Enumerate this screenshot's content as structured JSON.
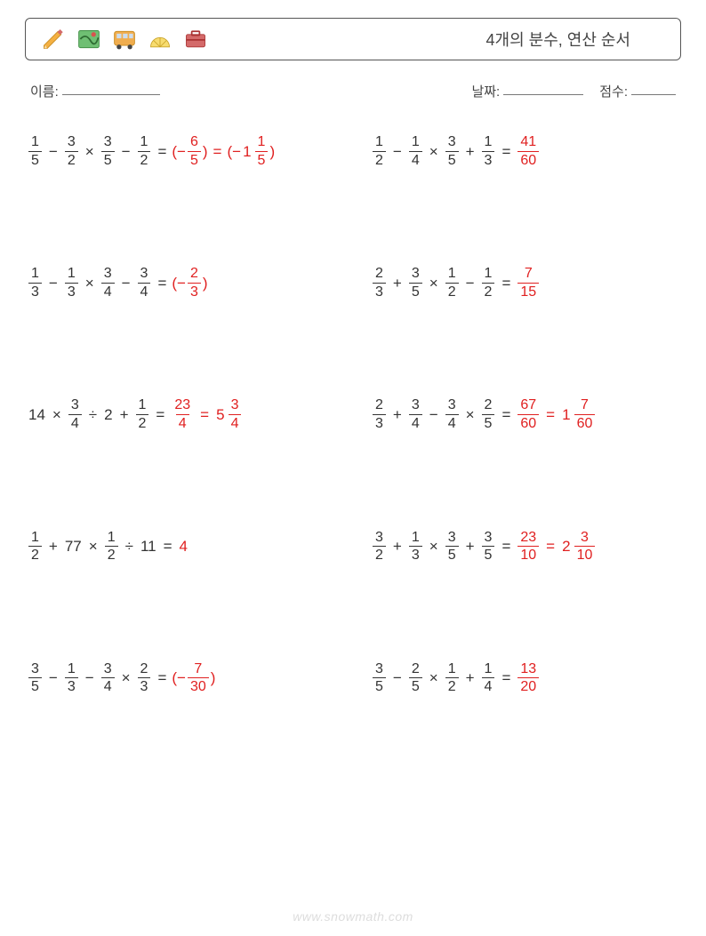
{
  "header": {
    "title": "4개의 분수, 연산 순서",
    "icons": [
      "pencil-icon",
      "map-icon",
      "bus-icon",
      "protractor-icon",
      "briefcase-icon"
    ]
  },
  "info": {
    "name_label": "이름:",
    "date_label": "날짜:",
    "score_label": "점수:"
  },
  "style": {
    "page_bg": "#ffffff",
    "text_color": "#333333",
    "answer_color": "#e02020",
    "border_color": "#555555",
    "watermark_color": "#dddddd",
    "font_size_body": 17,
    "font_size_title": 18
  },
  "problems": [
    {
      "expr": [
        {
          "t": "frac",
          "n": "1",
          "d": "5"
        },
        {
          "t": "op",
          "v": "−"
        },
        {
          "t": "frac",
          "n": "3",
          "d": "2"
        },
        {
          "t": "op",
          "v": "×"
        },
        {
          "t": "frac",
          "n": "3",
          "d": "5"
        },
        {
          "t": "op",
          "v": "−"
        },
        {
          "t": "frac",
          "n": "1",
          "d": "2"
        },
        {
          "t": "op",
          "v": "="
        }
      ],
      "ans": [
        {
          "t": "txt",
          "v": "(−"
        },
        {
          "t": "frac",
          "n": "6",
          "d": "5"
        },
        {
          "t": "txt",
          "v": ")"
        },
        {
          "t": "op",
          "v": "="
        },
        {
          "t": "txt",
          "v": "(−"
        },
        {
          "t": "mixed",
          "w": "1",
          "n": "1",
          "d": "5"
        },
        {
          "t": "txt",
          "v": ")"
        }
      ]
    },
    {
      "expr": [
        {
          "t": "frac",
          "n": "1",
          "d": "2"
        },
        {
          "t": "op",
          "v": "−"
        },
        {
          "t": "frac",
          "n": "1",
          "d": "4"
        },
        {
          "t": "op",
          "v": "×"
        },
        {
          "t": "frac",
          "n": "3",
          "d": "5"
        },
        {
          "t": "op",
          "v": "+"
        },
        {
          "t": "frac",
          "n": "1",
          "d": "3"
        },
        {
          "t": "op",
          "v": "="
        }
      ],
      "ans": [
        {
          "t": "frac",
          "n": "41",
          "d": "60"
        }
      ]
    },
    {
      "expr": [
        {
          "t": "frac",
          "n": "1",
          "d": "3"
        },
        {
          "t": "op",
          "v": "−"
        },
        {
          "t": "frac",
          "n": "1",
          "d": "3"
        },
        {
          "t": "op",
          "v": "×"
        },
        {
          "t": "frac",
          "n": "3",
          "d": "4"
        },
        {
          "t": "op",
          "v": "−"
        },
        {
          "t": "frac",
          "n": "3",
          "d": "4"
        },
        {
          "t": "op",
          "v": "="
        }
      ],
      "ans": [
        {
          "t": "txt",
          "v": "(−"
        },
        {
          "t": "frac",
          "n": "2",
          "d": "3"
        },
        {
          "t": "txt",
          "v": ")"
        }
      ]
    },
    {
      "expr": [
        {
          "t": "frac",
          "n": "2",
          "d": "3"
        },
        {
          "t": "op",
          "v": "+"
        },
        {
          "t": "frac",
          "n": "3",
          "d": "5"
        },
        {
          "t": "op",
          "v": "×"
        },
        {
          "t": "frac",
          "n": "1",
          "d": "2"
        },
        {
          "t": "op",
          "v": "−"
        },
        {
          "t": "frac",
          "n": "1",
          "d": "2"
        },
        {
          "t": "op",
          "v": "="
        }
      ],
      "ans": [
        {
          "t": "frac",
          "n": "7",
          "d": "15"
        }
      ]
    },
    {
      "expr": [
        {
          "t": "whole",
          "v": "14"
        },
        {
          "t": "op",
          "v": "×"
        },
        {
          "t": "frac",
          "n": "3",
          "d": "4"
        },
        {
          "t": "op",
          "v": "÷"
        },
        {
          "t": "whole",
          "v": "2"
        },
        {
          "t": "op",
          "v": "+"
        },
        {
          "t": "frac",
          "n": "1",
          "d": "2"
        },
        {
          "t": "op",
          "v": "="
        }
      ],
      "ans": [
        {
          "t": "frac",
          "n": "23",
          "d": "4"
        },
        {
          "t": "op",
          "v": "="
        },
        {
          "t": "mixed",
          "w": "5",
          "n": "3",
          "d": "4"
        }
      ]
    },
    {
      "expr": [
        {
          "t": "frac",
          "n": "2",
          "d": "3"
        },
        {
          "t": "op",
          "v": "+"
        },
        {
          "t": "frac",
          "n": "3",
          "d": "4"
        },
        {
          "t": "op",
          "v": "−"
        },
        {
          "t": "frac",
          "n": "3",
          "d": "4"
        },
        {
          "t": "op",
          "v": "×"
        },
        {
          "t": "frac",
          "n": "2",
          "d": "5"
        },
        {
          "t": "op",
          "v": "="
        }
      ],
      "ans": [
        {
          "t": "frac",
          "n": "67",
          "d": "60"
        },
        {
          "t": "op",
          "v": "="
        },
        {
          "t": "mixed",
          "w": "1",
          "n": "7",
          "d": "60"
        }
      ]
    },
    {
      "expr": [
        {
          "t": "frac",
          "n": "1",
          "d": "2"
        },
        {
          "t": "op",
          "v": "+"
        },
        {
          "t": "whole",
          "v": "77"
        },
        {
          "t": "op",
          "v": "×"
        },
        {
          "t": "frac",
          "n": "1",
          "d": "2"
        },
        {
          "t": "op",
          "v": "÷"
        },
        {
          "t": "whole",
          "v": "11"
        },
        {
          "t": "op",
          "v": "="
        }
      ],
      "ans": [
        {
          "t": "whole",
          "v": "4"
        }
      ]
    },
    {
      "expr": [
        {
          "t": "frac",
          "n": "3",
          "d": "2"
        },
        {
          "t": "op",
          "v": "+"
        },
        {
          "t": "frac",
          "n": "1",
          "d": "3"
        },
        {
          "t": "op",
          "v": "×"
        },
        {
          "t": "frac",
          "n": "3",
          "d": "5"
        },
        {
          "t": "op",
          "v": "+"
        },
        {
          "t": "frac",
          "n": "3",
          "d": "5"
        },
        {
          "t": "op",
          "v": "="
        }
      ],
      "ans": [
        {
          "t": "frac",
          "n": "23",
          "d": "10"
        },
        {
          "t": "op",
          "v": "="
        },
        {
          "t": "mixed",
          "w": "2",
          "n": "3",
          "d": "10"
        }
      ]
    },
    {
      "expr": [
        {
          "t": "frac",
          "n": "3",
          "d": "5"
        },
        {
          "t": "op",
          "v": "−"
        },
        {
          "t": "frac",
          "n": "1",
          "d": "3"
        },
        {
          "t": "op",
          "v": "−"
        },
        {
          "t": "frac",
          "n": "3",
          "d": "4"
        },
        {
          "t": "op",
          "v": "×"
        },
        {
          "t": "frac",
          "n": "2",
          "d": "3"
        },
        {
          "t": "op",
          "v": "="
        }
      ],
      "ans": [
        {
          "t": "txt",
          "v": "(−"
        },
        {
          "t": "frac",
          "n": "7",
          "d": "30"
        },
        {
          "t": "txt",
          "v": ")"
        }
      ]
    },
    {
      "expr": [
        {
          "t": "frac",
          "n": "3",
          "d": "5"
        },
        {
          "t": "op",
          "v": "−"
        },
        {
          "t": "frac",
          "n": "2",
          "d": "5"
        },
        {
          "t": "op",
          "v": "×"
        },
        {
          "t": "frac",
          "n": "1",
          "d": "2"
        },
        {
          "t": "op",
          "v": "+"
        },
        {
          "t": "frac",
          "n": "1",
          "d": "4"
        },
        {
          "t": "op",
          "v": "="
        }
      ],
      "ans": [
        {
          "t": "frac",
          "n": "13",
          "d": "20"
        }
      ]
    }
  ],
  "watermark": "www.snowmath.com"
}
